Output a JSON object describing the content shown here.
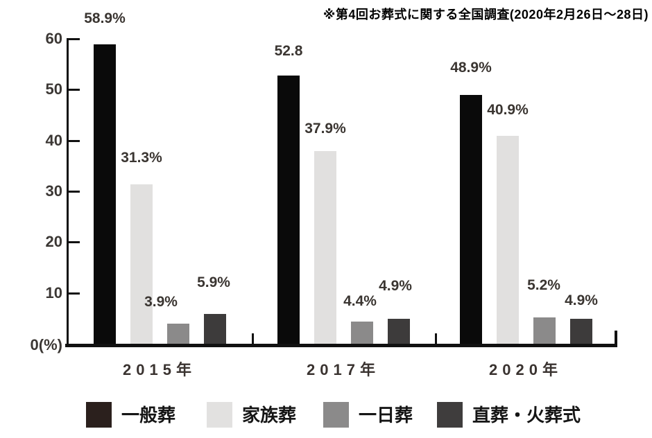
{
  "chart_data": {
    "type": "bar",
    "annotation": "※第4回お葬式に関する全国調査(2020年2月26日〜28日)",
    "categories": [
      "2015年",
      "2017年",
      "2020年"
    ],
    "series": [
      {
        "name": "一般葬",
        "values": [
          58.9,
          52.8,
          48.9
        ],
        "labels": [
          "58.9%",
          "52.8",
          "48.9%"
        ],
        "color": "#0a0a0a",
        "legend_color": "#2b201d"
      },
      {
        "name": "家族葬",
        "values": [
          31.3,
          37.9,
          40.9
        ],
        "labels": [
          "31.3%",
          "37.9%",
          "40.9%"
        ],
        "color": "#e1e0df",
        "legend_color": "#e2e1e0"
      },
      {
        "name": "一日葬",
        "values": [
          3.9,
          4.4,
          5.2
        ],
        "labels": [
          "3.9%",
          "4.4%",
          "5.2%"
        ],
        "color": "#8b8a8a",
        "legend_color": "#8b8a8a"
      },
      {
        "name": "直葬・火葬式",
        "values": [
          5.9,
          4.9,
          4.9
        ],
        "labels": [
          "5.9%",
          "4.9%",
          "4.9%"
        ],
        "color": "#3d3b3b",
        "legend_color": "#3f3d3d"
      }
    ],
    "ylim": [
      0,
      60
    ],
    "yticks": [
      10,
      20,
      30,
      40,
      50,
      60
    ],
    "origin_label": "0(%)",
    "xlabel": "",
    "ylabel": "",
    "grid": false,
    "legend_position": "bottom"
  },
  "colors": {
    "axis": "#111111",
    "value_label_text": "#3a3531",
    "category_label_text": "#3a3330",
    "note_text": "#000000"
  }
}
